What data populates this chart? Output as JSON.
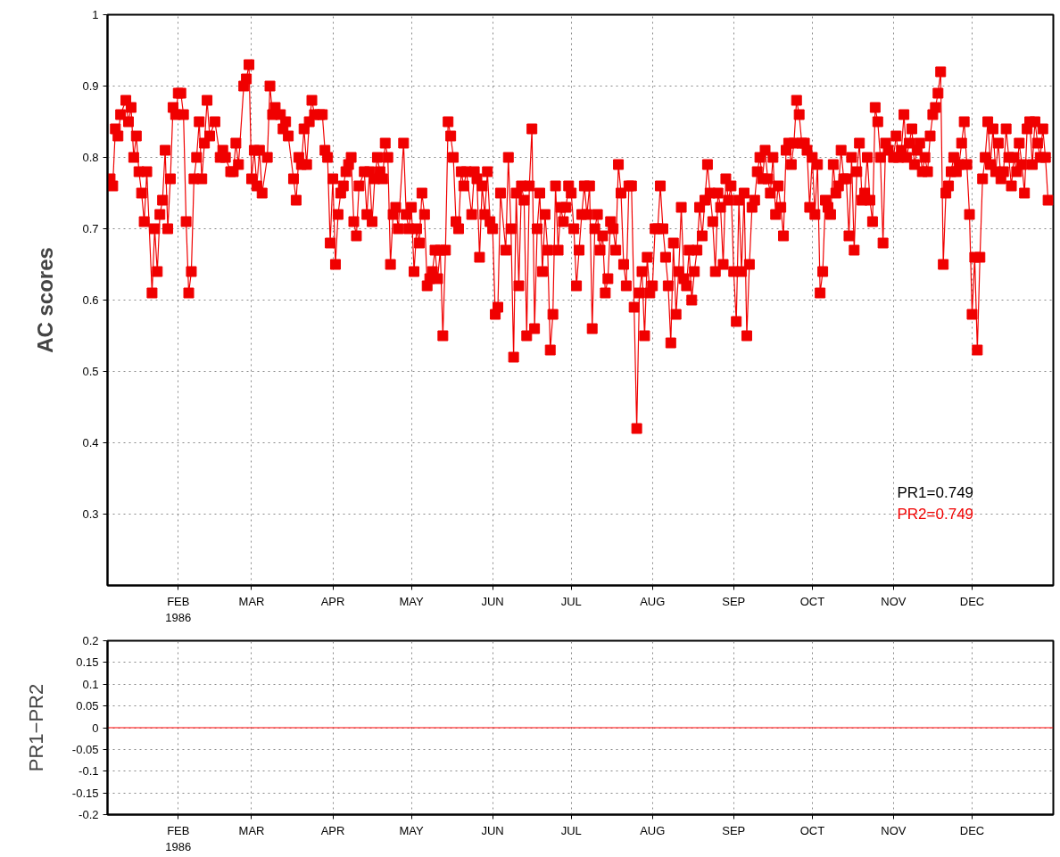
{
  "chart_data": [
    {
      "type": "line",
      "ylabel": "AC scores",
      "marker": "square",
      "line_style": "solid",
      "grid": true,
      "xlim": [
        "1986-01-05",
        "1987-01-01"
      ],
      "ylim": [
        0.2,
        1
      ],
      "yticks": [
        0.3,
        0.4,
        0.5,
        0.6,
        0.7,
        0.8,
        0.9,
        1
      ],
      "xticks": [
        {
          "value": "1986-02-01",
          "label": "FEB\n1986"
        },
        {
          "value": "1986-03-01",
          "label": "MAR"
        },
        {
          "value": "1986-04-01",
          "label": "APR"
        },
        {
          "value": "1986-05-01",
          "label": "MAY"
        },
        {
          "value": "1986-06-01",
          "label": "JUN"
        },
        {
          "value": "1986-07-01",
          "label": "JUL"
        },
        {
          "value": "1986-08-01",
          "label": "AUG"
        },
        {
          "value": "1986-09-01",
          "label": "SEP"
        },
        {
          "value": "1986-10-01",
          "label": "OCT"
        },
        {
          "value": "1986-11-01",
          "label": "NOV"
        },
        {
          "value": "1986-12-01",
          "label": "DEC"
        }
      ],
      "annotations": [
        "PR1=0.749",
        "PR2=0.749"
      ],
      "series": [
        {
          "color": "#f00000",
          "x": [
            "1986-01-06",
            "1986-01-07",
            "1986-01-08",
            "1986-01-09",
            "1986-01-10",
            "1986-01-12",
            "1986-01-13",
            "1986-01-14",
            "1986-01-15",
            "1986-01-16",
            "1986-01-17",
            "1986-01-18",
            "1986-01-19",
            "1986-01-20",
            "1986-01-22",
            "1986-01-23",
            "1986-01-24",
            "1986-01-25",
            "1986-01-26",
            "1986-01-27",
            "1986-01-28",
            "1986-01-29",
            "1986-01-30",
            "1986-01-31",
            "1986-02-01",
            "1986-02-02",
            "1986-02-03",
            "1986-02-04",
            "1986-02-05",
            "1986-02-06",
            "1986-02-07",
            "1986-02-08",
            "1986-02-09",
            "1986-02-10",
            "1986-02-11",
            "1986-02-12",
            "1986-02-13",
            "1986-02-15",
            "1986-02-17",
            "1986-02-18",
            "1986-02-19",
            "1986-02-21",
            "1986-02-22",
            "1986-02-23",
            "1986-02-24",
            "1986-02-26",
            "1986-02-27",
            "1986-02-28",
            "1986-03-01",
            "1986-03-02",
            "1986-03-03",
            "1986-03-04",
            "1986-03-05",
            "1986-03-07",
            "1986-03-08",
            "1986-03-09",
            "1986-03-10",
            "1986-03-12",
            "1986-03-13",
            "1986-03-14",
            "1986-03-15",
            "1986-03-17",
            "1986-03-18",
            "1986-03-19",
            "1986-03-20",
            "1986-03-21",
            "1986-03-22",
            "1986-03-23",
            "1986-03-24",
            "1986-03-25",
            "1986-03-27",
            "1986-03-28",
            "1986-03-29",
            "1986-03-30",
            "1986-03-31",
            "1986-04-01",
            "1986-04-02",
            "1986-04-03",
            "1986-04-04",
            "1986-04-05",
            "1986-04-06",
            "1986-04-07",
            "1986-04-08",
            "1986-04-09",
            "1986-04-10",
            "1986-04-11",
            "1986-04-13",
            "1986-04-14",
            "1986-04-15",
            "1986-04-16",
            "1986-04-17",
            "1986-04-18",
            "1986-04-19",
            "1986-04-20",
            "1986-04-21",
            "1986-04-22",
            "1986-04-23",
            "1986-04-24",
            "1986-04-25",
            "1986-04-26",
            "1986-04-28",
            "1986-04-29",
            "1986-04-30",
            "1986-05-01",
            "1986-05-02",
            "1986-05-03",
            "1986-05-04",
            "1986-05-05",
            "1986-05-06",
            "1986-05-07",
            "1986-05-08",
            "1986-05-09",
            "1986-05-10",
            "1986-05-11",
            "1986-05-12",
            "1986-05-13",
            "1986-05-14",
            "1986-05-15",
            "1986-05-16",
            "1986-05-17",
            "1986-05-18",
            "1986-05-19",
            "1986-05-20",
            "1986-05-21",
            "1986-05-22",
            "1986-05-24",
            "1986-05-25",
            "1986-05-26",
            "1986-05-27",
            "1986-05-28",
            "1986-05-29",
            "1986-05-30",
            "1986-05-31",
            "1986-06-01",
            "1986-06-02",
            "1986-06-03",
            "1986-06-04",
            "1986-06-06",
            "1986-06-07",
            "1986-06-08",
            "1986-06-09",
            "1986-06-10",
            "1986-06-11",
            "1986-06-12",
            "1986-06-13",
            "1986-06-14",
            "1986-06-15",
            "1986-06-16",
            "1986-06-17",
            "1986-06-18",
            "1986-06-19",
            "1986-06-20",
            "1986-06-21",
            "1986-06-22",
            "1986-06-23",
            "1986-06-24",
            "1986-06-25",
            "1986-06-26",
            "1986-06-27",
            "1986-06-28",
            "1986-06-29",
            "1986-06-30",
            "1986-07-01",
            "1986-07-02",
            "1986-07-03",
            "1986-07-04",
            "1986-07-05",
            "1986-07-06",
            "1986-07-07",
            "1986-07-08",
            "1986-07-09",
            "1986-07-10",
            "1986-07-11",
            "1986-07-12",
            "1986-07-13",
            "1986-07-14",
            "1986-07-15",
            "1986-07-16",
            "1986-07-17",
            "1986-07-18",
            "1986-07-19",
            "1986-07-20",
            "1986-07-21",
            "1986-07-22",
            "1986-07-23",
            "1986-07-24",
            "1986-07-25",
            "1986-07-26",
            "1986-07-27",
            "1986-07-28",
            "1986-07-29",
            "1986-07-30",
            "1986-07-31",
            "1986-08-01",
            "1986-08-02",
            "1986-08-03",
            "1986-08-04",
            "1986-08-05",
            "1986-08-06",
            "1986-08-07",
            "1986-08-08",
            "1986-08-09",
            "1986-08-10",
            "1986-08-11",
            "1986-08-12",
            "1986-08-13",
            "1986-08-14",
            "1986-08-15",
            "1986-08-16",
            "1986-08-17",
            "1986-08-18",
            "1986-08-19",
            "1986-08-20",
            "1986-08-21",
            "1986-08-22",
            "1986-08-23",
            "1986-08-24",
            "1986-08-25",
            "1986-08-26",
            "1986-08-27",
            "1986-08-28",
            "1986-08-29",
            "1986-08-30",
            "1986-08-31",
            "1986-09-01",
            "1986-09-02",
            "1986-09-03",
            "1986-09-04",
            "1986-09-05",
            "1986-09-06",
            "1986-09-07",
            "1986-09-08",
            "1986-09-09",
            "1986-09-10",
            "1986-09-11",
            "1986-09-12",
            "1986-09-13",
            "1986-09-14",
            "1986-09-15",
            "1986-09-16",
            "1986-09-17",
            "1986-09-18",
            "1986-09-19",
            "1986-09-20",
            "1986-09-21",
            "1986-09-22",
            "1986-09-23",
            "1986-09-24",
            "1986-09-25",
            "1986-09-26",
            "1986-09-27",
            "1986-09-28",
            "1986-09-29",
            "1986-09-30",
            "1986-10-01",
            "1986-10-02",
            "1986-10-03",
            "1986-10-04",
            "1986-10-05",
            "1986-10-06",
            "1986-10-07",
            "1986-10-08",
            "1986-10-09",
            "1986-10-10",
            "1986-10-11",
            "1986-10-12",
            "1986-10-13",
            "1986-10-14",
            "1986-10-15",
            "1986-10-16",
            "1986-10-17",
            "1986-10-18",
            "1986-10-19",
            "1986-10-20",
            "1986-10-21",
            "1986-10-22",
            "1986-10-23",
            "1986-10-24",
            "1986-10-25",
            "1986-10-26",
            "1986-10-27",
            "1986-10-28",
            "1986-10-29",
            "1986-10-30",
            "1986-11-01",
            "1986-11-02",
            "1986-11-03",
            "1986-11-04",
            "1986-11-05",
            "1986-11-06",
            "1986-11-07",
            "1986-11-08",
            "1986-11-09",
            "1986-11-10",
            "1986-11-11",
            "1986-11-12",
            "1986-11-13",
            "1986-11-14",
            "1986-11-15",
            "1986-11-16",
            "1986-11-17",
            "1986-11-18",
            "1986-11-19",
            "1986-11-20",
            "1986-11-21",
            "1986-11-22",
            "1986-11-23",
            "1986-11-24",
            "1986-11-25",
            "1986-11-26",
            "1986-11-27",
            "1986-11-28",
            "1986-11-29",
            "1986-11-30",
            "1986-12-01",
            "1986-12-02",
            "1986-12-03",
            "1986-12-04",
            "1986-12-05",
            "1986-12-06",
            "1986-12-07",
            "1986-12-08",
            "1986-12-09",
            "1986-12-10",
            "1986-12-11",
            "1986-12-12",
            "1986-12-13",
            "1986-12-14",
            "1986-12-15",
            "1986-12-16",
            "1986-12-17",
            "1986-12-18",
            "1986-12-19",
            "1986-12-20",
            "1986-12-21",
            "1986-12-22",
            "1986-12-23",
            "1986-12-24",
            "1986-12-25",
            "1986-12-26",
            "1986-12-27",
            "1986-12-28",
            "1986-12-29",
            "1986-12-30"
          ],
          "values": [
            0.77,
            0.76,
            0.84,
            0.83,
            0.86,
            0.88,
            0.85,
            0.87,
            0.8,
            0.83,
            0.78,
            0.75,
            0.71,
            0.78,
            0.61,
            0.7,
            0.64,
            0.72,
            0.74,
            0.81,
            0.7,
            0.77,
            0.87,
            0.86,
            0.89,
            0.89,
            0.86,
            0.71,
            0.61,
            0.64,
            0.77,
            0.8,
            0.85,
            0.77,
            0.82,
            0.88,
            0.83,
            0.85,
            0.8,
            0.81,
            0.8,
            0.78,
            0.78,
            0.82,
            0.79,
            0.9,
            0.91,
            0.93,
            0.77,
            0.81,
            0.76,
            0.81,
            0.75,
            0.8,
            0.9,
            0.86,
            0.87,
            0.86,
            0.84,
            0.85,
            0.83,
            0.77,
            0.74,
            0.8,
            0.79,
            0.84,
            0.79,
            0.85,
            0.88,
            0.86,
            0.86,
            0.86,
            0.81,
            0.8,
            0.68,
            0.77,
            0.65,
            0.72,
            0.75,
            0.76,
            0.78,
            0.79,
            0.8,
            0.71,
            0.69,
            0.76,
            0.78,
            0.72,
            0.78,
            0.71,
            0.77,
            0.8,
            0.78,
            0.77,
            0.82,
            0.8,
            0.65,
            0.72,
            0.73,
            0.7,
            0.82,
            0.72,
            0.7,
            0.73,
            0.64,
            0.7,
            0.68,
            0.75,
            0.72,
            0.62,
            0.63,
            0.64,
            0.67,
            0.63,
            0.67,
            0.55,
            0.67,
            0.85,
            0.83,
            0.8,
            0.71,
            0.7,
            0.78,
            0.76,
            0.78,
            0.72,
            0.78,
            0.77,
            0.66,
            0.76,
            0.72,
            0.78,
            0.71,
            0.7,
            0.58,
            0.59,
            0.75,
            0.67,
            0.8,
            0.7,
            0.52,
            0.75,
            0.62,
            0.76,
            0.74,
            0.55,
            0.76,
            0.84,
            0.56,
            0.7,
            0.75,
            0.64,
            0.72,
            0.67,
            0.53,
            0.58,
            0.76,
            0.67,
            0.73,
            0.71,
            0.73,
            0.76,
            0.75,
            0.7,
            0.62,
            0.67,
            0.72,
            0.76,
            0.72,
            0.76,
            0.56,
            0.7,
            0.72,
            0.67,
            0.69,
            0.61,
            0.63,
            0.71,
            0.7,
            0.67,
            0.79,
            0.75,
            0.65,
            0.62,
            0.76,
            0.76,
            0.59,
            0.42,
            0.61,
            0.64,
            0.55,
            0.66,
            0.61,
            0.62,
            0.7,
            0.7,
            0.76,
            0.7,
            0.66,
            0.62,
            0.54,
            0.68,
            0.58,
            0.64,
            0.73,
            0.63,
            0.62,
            0.67,
            0.6,
            0.64,
            0.67,
            0.73,
            0.69,
            0.74,
            0.79,
            0.75,
            0.71,
            0.64,
            0.75,
            0.73,
            0.65,
            0.77,
            0.74,
            0.76,
            0.64,
            0.57,
            0.74,
            0.64,
            0.75,
            0.55,
            0.65,
            0.73,
            0.74,
            0.78,
            0.8,
            0.77,
            0.81,
            0.77,
            0.75,
            0.8,
            0.72,
            0.76,
            0.73,
            0.69,
            0.81,
            0.82,
            0.79,
            0.82,
            0.88,
            0.86,
            0.82,
            0.82,
            0.81,
            0.73,
            0.8,
            0.72,
            0.79,
            0.61,
            0.64,
            0.74,
            0.73,
            0.72,
            0.79,
            0.75,
            0.76,
            0.81,
            0.77,
            0.77,
            0.69,
            0.8,
            0.67,
            0.78,
            0.82,
            0.74,
            0.75,
            0.8,
            0.74,
            0.71,
            0.87,
            0.85,
            0.8,
            0.68,
            0.82,
            0.81,
            0.8,
            0.83,
            0.8,
            0.81,
            0.86,
            0.8,
            0.82,
            0.84,
            0.79,
            0.81,
            0.82,
            0.78,
            0.8,
            0.78,
            0.83,
            0.86,
            0.87,
            0.89,
            0.92,
            0.65,
            0.75,
            0.76,
            0.78,
            0.8,
            0.78,
            0.79,
            0.82,
            0.85,
            0.79,
            0.72,
            0.58,
            0.66,
            0.53,
            0.66,
            0.77,
            0.8,
            0.85,
            0.79,
            0.84,
            0.78,
            0.82,
            0.77,
            0.78,
            0.84,
            0.8,
            0.76,
            0.8,
            0.78,
            0.82,
            0.79,
            0.75,
            0.84,
            0.85,
            0.79,
            0.85,
            0.82,
            0.8,
            0.84,
            0.8,
            0.74
          ]
        }
      ]
    },
    {
      "type": "line",
      "ylabel": "PR1−PR2",
      "marker": "none",
      "line_style": "solid",
      "grid": true,
      "xlim": [
        "1986-01-05",
        "1987-01-01"
      ],
      "ylim": [
        -0.2,
        0.2
      ],
      "yticks": [
        -0.2,
        -0.15,
        -0.1,
        -0.05,
        0,
        0.05,
        0.1,
        0.15,
        0.2
      ],
      "xticks": [
        {
          "value": "1986-02-01",
          "label": "FEB\n1986"
        },
        {
          "value": "1986-03-01",
          "label": "MAR"
        },
        {
          "value": "1986-04-01",
          "label": "APR"
        },
        {
          "value": "1986-05-01",
          "label": "MAY"
        },
        {
          "value": "1986-06-01",
          "label": "JUN"
        },
        {
          "value": "1986-07-01",
          "label": "JUL"
        },
        {
          "value": "1986-08-01",
          "label": "AUG"
        },
        {
          "value": "1986-09-01",
          "label": "SEP"
        },
        {
          "value": "1986-10-01",
          "label": "OCT"
        },
        {
          "value": "1986-11-01",
          "label": "NOV"
        },
        {
          "value": "1986-12-01",
          "label": "DEC"
        }
      ],
      "series": [
        {
          "color": "#ff0000",
          "x": [
            "1986-01-05",
            "1987-01-01"
          ],
          "values": [
            0,
            0
          ]
        }
      ]
    }
  ]
}
